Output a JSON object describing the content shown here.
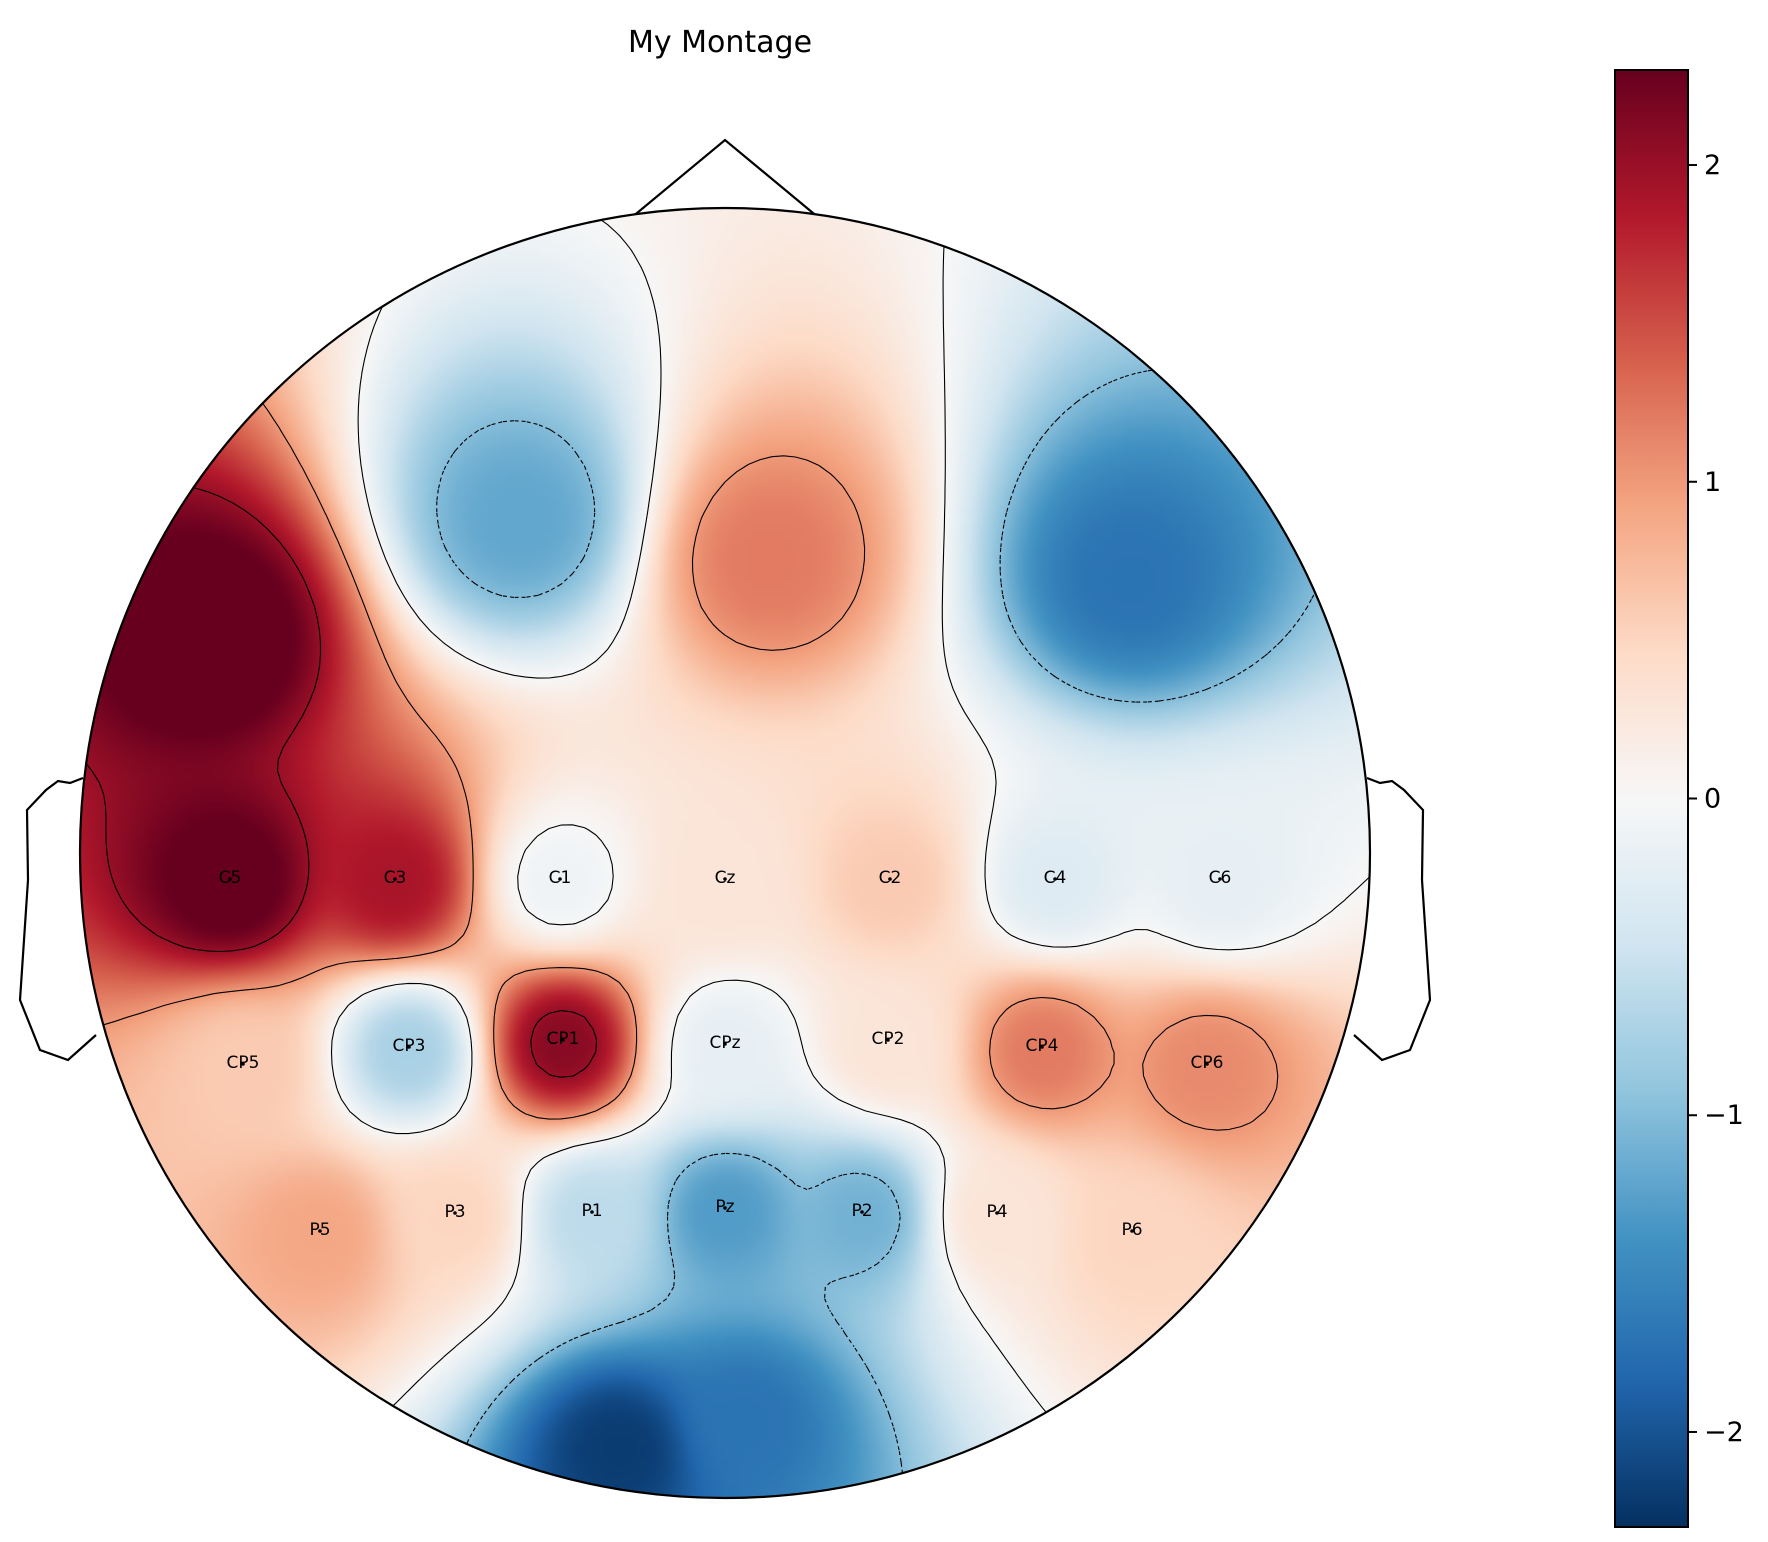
{
  "chart_data": {
    "type": "heatmap",
    "subtype": "topomap",
    "title": "My Montage",
    "colormap": "RdBu_r",
    "colorbar": {
      "range": [
        -2.3,
        2.3
      ],
      "ticks": [
        -2,
        -1,
        0,
        1,
        2
      ],
      "tick_labels": [
        "−2",
        "−1",
        "0",
        "1",
        "2"
      ]
    },
    "contour_levels": [
      -1,
      0,
      1,
      2
    ],
    "electrodes": [
      {
        "name": "C5",
        "value": 2.4
      },
      {
        "name": "C3",
        "value": 1.9
      },
      {
        "name": "C1",
        "value": -0.1
      },
      {
        "name": "Cz",
        "value": 0.3
      },
      {
        "name": "C2",
        "value": 0.6
      },
      {
        "name": "C4",
        "value": -0.3
      },
      {
        "name": "C6",
        "value": -0.2
      },
      {
        "name": "CP5",
        "value": 0.6
      },
      {
        "name": "CP3",
        "value": -0.75
      },
      {
        "name": "CP1",
        "value": 2.1
      },
      {
        "name": "CPz",
        "value": -0.2
      },
      {
        "name": "CP2",
        "value": 0.3
      },
      {
        "name": "CP4",
        "value": 1.2
      },
      {
        "name": "CP6",
        "value": 1.1
      },
      {
        "name": "P5",
        "value": 0.9
      },
      {
        "name": "P3",
        "value": 0.5
      },
      {
        "name": "P1",
        "value": -0.6
      },
      {
        "name": "Pz",
        "value": -1.3
      },
      {
        "name": "P2",
        "value": -1.1
      },
      {
        "name": "P4",
        "value": 0.3
      },
      {
        "name": "P6",
        "value": 0.5
      }
    ],
    "extra_sources": [
      {
        "region": "front-left-upper",
        "value": -1.2
      },
      {
        "region": "front-right-upper",
        "value": -1.7
      },
      {
        "region": "frontal-midline",
        "value": 1.2
      },
      {
        "region": "far-left-front",
        "value": 2.5
      },
      {
        "region": "occipital-center-left",
        "value": -2.2
      },
      {
        "region": "occipital-center",
        "value": -1.7
      }
    ]
  }
}
